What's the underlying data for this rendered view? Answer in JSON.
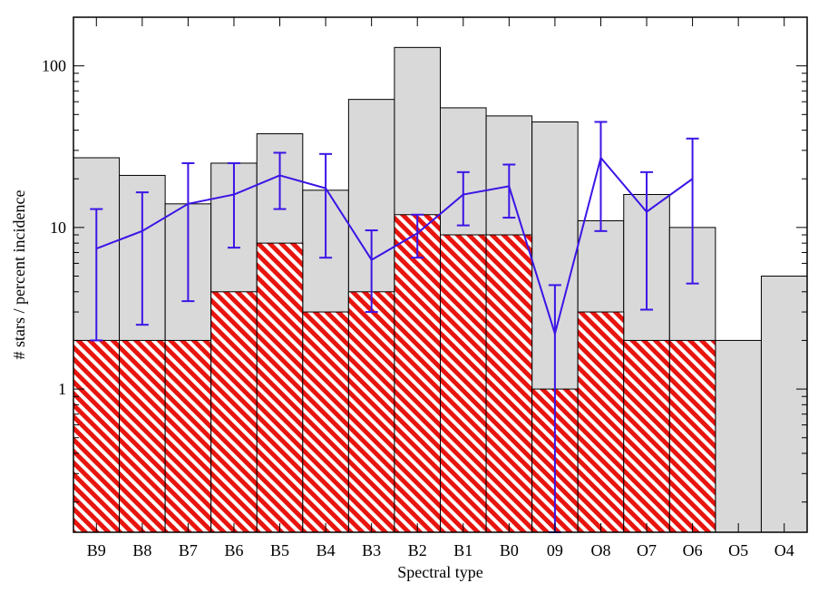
{
  "chart_data": {
    "type": "bar",
    "xlabel": "Spectral type",
    "ylabel": "# stars / percent incidence",
    "y_scale": "log",
    "ylim": [
      0.13,
      200
    ],
    "y_ticks": [
      {
        "value": 1,
        "label": "1"
      },
      {
        "value": 10,
        "label": "10"
      },
      {
        "value": 100,
        "label": "100"
      }
    ],
    "categories": [
      "B9",
      "B8",
      "B7",
      "B6",
      "B5",
      "B4",
      "B3",
      "B2",
      "B1",
      "B0",
      "09",
      "O8",
      "O7",
      "O6",
      "O5",
      "O4"
    ],
    "series": [
      {
        "type": "bar",
        "values": [
          27,
          21,
          14,
          25,
          38,
          17,
          62,
          130,
          55,
          49,
          45,
          11,
          16,
          10,
          2,
          5
        ],
        "color": "#d9d9d9"
      },
      {
        "type": "bar",
        "pattern": "hatched",
        "values": [
          2,
          2,
          2,
          4,
          8,
          3,
          4,
          12,
          9,
          9,
          1,
          3,
          2,
          2,
          null,
          null
        ],
        "color": "#e8150f"
      },
      {
        "type": "line",
        "values": [
          7.4,
          9.5,
          14,
          16,
          21,
          17.5,
          6.3,
          9.2,
          16,
          18,
          2.2,
          27,
          12.5,
          20,
          null,
          null
        ],
        "err_low": [
          2,
          2.5,
          3.5,
          7.5,
          13,
          6.5,
          3,
          6.5,
          10.3,
          11.5,
          0.13,
          9.5,
          3.1,
          4.5,
          null,
          null
        ],
        "err_high": [
          13,
          16.5,
          25,
          25,
          29,
          28.5,
          9.6,
          12,
          22,
          24.5,
          4.4,
          45,
          22,
          35.5,
          null,
          null
        ],
        "color": "#3c14e6"
      }
    ]
  }
}
